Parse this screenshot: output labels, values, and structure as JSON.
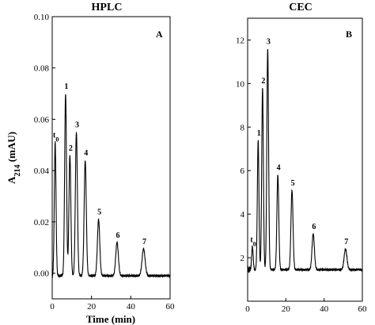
{
  "chart_data": [
    {
      "type": "line",
      "title": "HPLC",
      "panel_label": "A",
      "xlabel": "Time (min)",
      "ylabel_main": "A",
      "ylabel_sub": "214",
      "ylabel_unit": " (mAU)",
      "xlim": [
        0,
        60
      ],
      "ylim": [
        -0.01,
        0.1
      ],
      "xticks": [
        "0",
        "20",
        "40",
        "60"
      ],
      "yticks": [
        "0.00",
        "0.02",
        "0.04",
        "0.06",
        "0.08",
        "0.10"
      ],
      "baseline": -0.001,
      "peaks": [
        {
          "label": "t",
          "sub": "0",
          "x": 1.5,
          "y": 0.051
        },
        {
          "label": "1",
          "x": 6.8,
          "y": 0.07
        },
        {
          "label": "2",
          "x": 9.0,
          "y": 0.046
        },
        {
          "label": "3",
          "x": 12.3,
          "y": 0.055
        },
        {
          "label": "4",
          "x": 16.8,
          "y": 0.044
        },
        {
          "label": "5",
          "x": 23.6,
          "y": 0.021
        },
        {
          "label": "6",
          "x": 33.0,
          "y": 0.012
        },
        {
          "label": "7",
          "x": 46.5,
          "y": 0.0095
        }
      ]
    },
    {
      "type": "line",
      "title": "CEC",
      "panel_label": "B",
      "xlabel": "",
      "xlim": [
        0,
        60
      ],
      "ylim": [
        0,
        13
      ],
      "xticks": [
        "0",
        "20",
        "40",
        "60"
      ],
      "yticks": [
        "2",
        "4",
        "6",
        "8",
        "10",
        "12"
      ],
      "baseline": 1.45,
      "peaks": [
        {
          "label": "t",
          "sub": "0",
          "x": 2.5,
          "y": 2.5
        },
        {
          "label": "1",
          "x": 5.5,
          "y": 7.4
        },
        {
          "label": "2",
          "x": 7.8,
          "y": 9.8
        },
        {
          "label": "3",
          "x": 10.5,
          "y": 11.6
        },
        {
          "label": "4",
          "x": 15.8,
          "y": 5.8
        },
        {
          "label": "5",
          "x": 23.2,
          "y": 5.1
        },
        {
          "label": "6",
          "x": 34.3,
          "y": 3.1
        },
        {
          "label": "7",
          "x": 51.2,
          "y": 2.4
        }
      ]
    }
  ]
}
